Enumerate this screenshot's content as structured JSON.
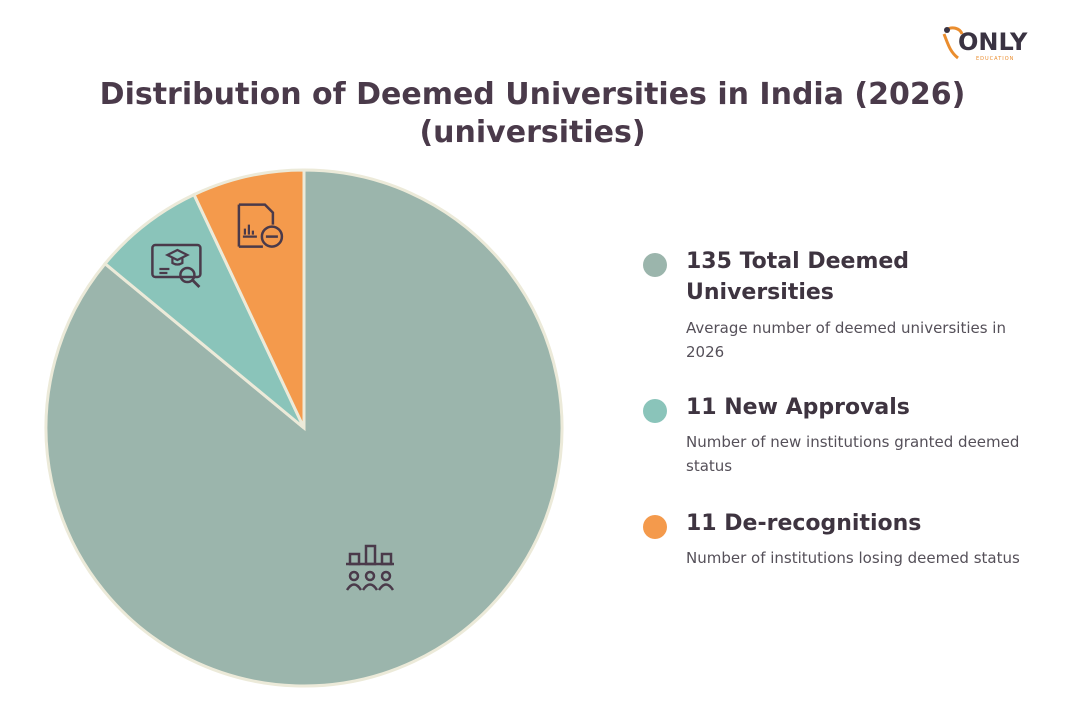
{
  "logo": {
    "text": "ONLY",
    "subtext": "EDUCATION"
  },
  "title_lines": [
    "Distribution of Deemed Universities in India (2026)",
    "(universities)"
  ],
  "chart_data": {
    "type": "pie",
    "title": "Distribution of Deemed Universities in India (2026) (universities)",
    "legend_position": "right",
    "series": [
      {
        "name": "135 Total Deemed Universities",
        "value": 135,
        "color": "#9bb5ac",
        "description": "Average number of deemed universities in 2026",
        "icon": "presentation-audience-icon"
      },
      {
        "name": "11 New Approvals",
        "value": 11,
        "color": "#8ac4ba",
        "description": "Number of new institutions granted deemed status",
        "icon": "graduation-search-icon"
      },
      {
        "name": "11 De-recognitions",
        "value": 11,
        "color": "#f49a4c",
        "description": "Number of institutions losing deemed status",
        "icon": "report-remove-icon"
      }
    ]
  },
  "colors": {
    "border": "#ecead9",
    "icon_stroke": "#4a3a4a",
    "title": "#4a3a4a",
    "brand_orange": "#ea8d2e"
  }
}
